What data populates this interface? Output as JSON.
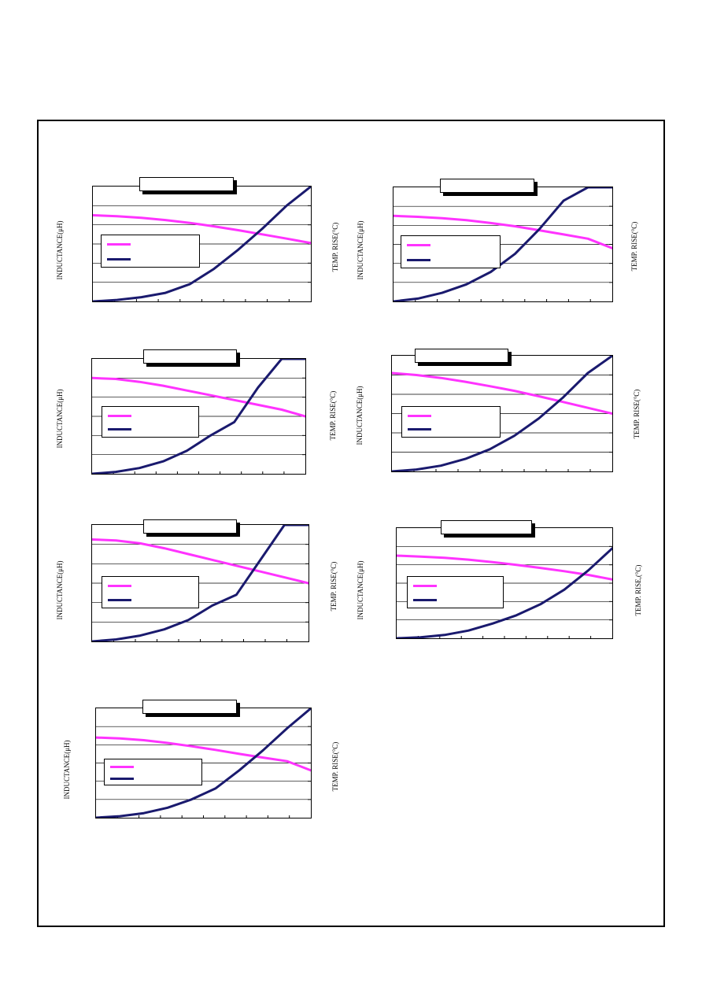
{
  "colors": {
    "inductance": "#ff33ff",
    "temp": "#1a1a6e",
    "frame": "#000000"
  },
  "charts": [
    {
      "title": "",
      "ylabel_left": "INDUCTANCE(μH)",
      "ylabel_right": "TEMP. RISE(°C)",
      "legend": [
        "",
        ""
      ]
    },
    {
      "title": "",
      "ylabel_left": "INDUCTANCE(μH)",
      "ylabel_right": "TEMP. RISE(°C)",
      "legend": [
        "",
        ""
      ]
    },
    {
      "title": "",
      "ylabel_left": "INDUCTANCE(μH)",
      "ylabel_right": "TEMP. RISE(°C)",
      "legend": [
        "",
        ""
      ]
    },
    {
      "title": "",
      "ylabel_left": "INDUCTANCE(μH)",
      "ylabel_right": "TEMP. RISE(°C)",
      "legend": [
        "",
        ""
      ]
    },
    {
      "title": "",
      "ylabel_left": "INDUCTANCE(μH)",
      "ylabel_right": "TEMP. RISE(°C)",
      "legend": [
        "",
        ""
      ]
    },
    {
      "title": "",
      "ylabel_left": "INDUCTANCE(μH)",
      "ylabel_right": "TEMP. RISE,(°C)",
      "legend": [
        "",
        ""
      ]
    },
    {
      "title": "",
      "ylabel_left": "INDUCTANCE(μH)",
      "ylabel_right": "TEMP. RISE(°C)",
      "legend": [
        "",
        ""
      ]
    }
  ],
  "chart_data": [
    {
      "type": "line",
      "grid": true,
      "x": [
        0,
        1,
        2,
        3,
        4,
        5,
        6,
        7,
        8,
        9
      ],
      "ylim": [
        0,
        6
      ],
      "series": [
        {
          "values": [
            4.5,
            4.45,
            4.37,
            4.25,
            4.1,
            3.92,
            3.72,
            3.5,
            3.28,
            3.05
          ]
        },
        {
          "values": [
            0,
            0.08,
            0.22,
            0.45,
            0.9,
            1.7,
            2.7,
            3.8,
            5.0,
            6.0
          ]
        }
      ]
    },
    {
      "type": "line",
      "grid": true,
      "x": [
        0,
        1,
        2,
        3,
        4,
        5,
        6,
        7,
        8,
        9
      ],
      "ylim": [
        0,
        6
      ],
      "series": [
        {
          "values": [
            4.5,
            4.45,
            4.38,
            4.27,
            4.12,
            3.95,
            3.74,
            3.52,
            3.3,
            2.8
          ]
        },
        {
          "values": [
            0,
            0.15,
            0.45,
            0.9,
            1.55,
            2.5,
            3.8,
            5.3,
            6.0,
            6.0
          ]
        }
      ]
    },
    {
      "type": "line",
      "grid": true,
      "x": [
        0,
        1,
        2,
        3,
        4,
        5,
        6,
        7,
        8,
        9
      ],
      "ylim": [
        0,
        6
      ],
      "series": [
        {
          "values": [
            5.0,
            4.95,
            4.8,
            4.6,
            4.35,
            4.1,
            3.85,
            3.6,
            3.35,
            3.0
          ]
        },
        {
          "values": [
            0,
            0.1,
            0.3,
            0.65,
            1.2,
            2.0,
            2.7,
            4.5,
            6.0,
            6.0
          ]
        }
      ]
    },
    {
      "type": "line",
      "grid": true,
      "x": [
        0,
        1,
        2,
        3,
        4,
        5,
        6,
        7,
        8,
        9
      ],
      "ylim": [
        0,
        6
      ],
      "series": [
        {
          "values": [
            5.1,
            5.0,
            4.85,
            4.65,
            4.42,
            4.18,
            3.9,
            3.6,
            3.3,
            3.0
          ]
        },
        {
          "values": [
            0,
            0.1,
            0.3,
            0.65,
            1.15,
            1.85,
            2.75,
            3.85,
            5.1,
            6.0
          ]
        }
      ]
    },
    {
      "type": "line",
      "grid": true,
      "x": [
        0,
        1,
        2,
        3,
        4,
        5,
        6,
        7,
        8,
        9
      ],
      "ylim": [
        0,
        6
      ],
      "series": [
        {
          "values": [
            5.25,
            5.2,
            5.05,
            4.8,
            4.5,
            4.2,
            3.9,
            3.6,
            3.3,
            3.0
          ]
        },
        {
          "values": [
            0,
            0.1,
            0.3,
            0.62,
            1.1,
            1.85,
            2.4,
            4.2,
            6.0,
            6.0
          ]
        }
      ]
    },
    {
      "type": "line",
      "grid": true,
      "x": [
        0,
        1,
        2,
        3,
        4,
        5,
        6,
        7,
        8,
        9
      ],
      "ylim": [
        0,
        6
      ],
      "series": [
        {
          "values": [
            4.5,
            4.45,
            4.38,
            4.28,
            4.15,
            4.0,
            3.83,
            3.65,
            3.45,
            3.2
          ]
        },
        {
          "values": [
            0,
            0.05,
            0.18,
            0.42,
            0.8,
            1.25,
            1.85,
            2.65,
            3.7,
            4.9
          ]
        }
      ]
    },
    {
      "type": "line",
      "grid": true,
      "x": [
        0,
        1,
        2,
        3,
        4,
        5,
        6,
        7,
        8,
        9
      ],
      "ylim": [
        0,
        6
      ],
      "series": [
        {
          "values": [
            4.4,
            4.35,
            4.25,
            4.1,
            3.92,
            3.72,
            3.5,
            3.3,
            3.1,
            2.6
          ]
        },
        {
          "values": [
            0,
            0.08,
            0.25,
            0.55,
            1.0,
            1.6,
            2.6,
            3.7,
            4.9,
            6.0
          ]
        }
      ]
    }
  ]
}
